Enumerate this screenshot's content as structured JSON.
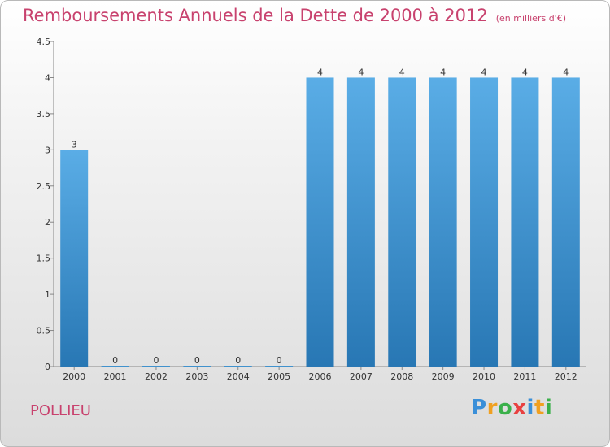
{
  "chart_data": {
    "type": "bar",
    "title": "Remboursements Annuels de la Dette de 2000 à 2012",
    "units": "(en milliers d'€)",
    "categories": [
      "2000",
      "2001",
      "2002",
      "2003",
      "2004",
      "2005",
      "2006",
      "2007",
      "2008",
      "2009",
      "2010",
      "2011",
      "2012"
    ],
    "values": [
      3,
      0,
      0,
      0,
      0,
      0,
      4,
      4,
      4,
      4,
      4,
      4,
      4
    ],
    "data_labels": [
      "3",
      "0",
      "0",
      "0",
      "0",
      "0",
      "4",
      "4",
      "4",
      "4",
      "4",
      "4",
      "4"
    ],
    "yticks": [
      "0",
      "0.5",
      "1",
      "1.5",
      "2",
      "2.5",
      "3",
      "3.5",
      "4",
      "4.5"
    ],
    "ylim": [
      0,
      4.5
    ],
    "grid": false,
    "bar_color_top": "#5aade6",
    "bar_color_bottom": "#2877b4"
  },
  "commune": "POLLIEU",
  "logo": {
    "letters": [
      "P",
      "r",
      "o",
      "x",
      "i",
      "t",
      "i"
    ],
    "colors": [
      "#3a8fd8",
      "#f0a020",
      "#3ab04a",
      "#e84040",
      "#3a8fd8",
      "#f0a020",
      "#3ab04a"
    ]
  }
}
